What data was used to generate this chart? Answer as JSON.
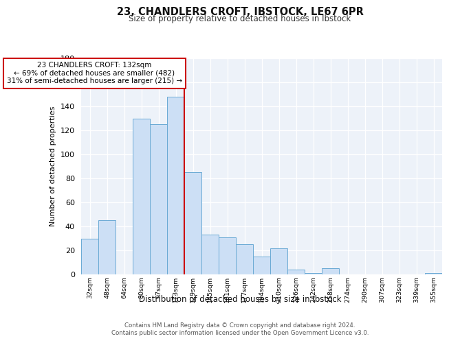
{
  "title": "23, CHANDLERS CROFT, IBSTOCK, LE67 6PR",
  "subtitle": "Size of property relative to detached houses in Ibstock",
  "xlabel": "Distribution of detached houses by size in Ibstock",
  "ylabel": "Number of detached properties",
  "bin_labels": [
    "32sqm",
    "48sqm",
    "64sqm",
    "80sqm",
    "97sqm",
    "113sqm",
    "129sqm",
    "145sqm",
    "161sqm",
    "177sqm",
    "194sqm",
    "210sqm",
    "226sqm",
    "242sqm",
    "258sqm",
    "274sqm",
    "290sqm",
    "307sqm",
    "323sqm",
    "339sqm",
    "355sqm"
  ],
  "bar_values": [
    30,
    45,
    0,
    130,
    125,
    148,
    85,
    33,
    31,
    25,
    15,
    22,
    4,
    1,
    5,
    0,
    0,
    0,
    0,
    0,
    1
  ],
  "bar_color": "#ccdff5",
  "bar_edge_color": "#6aaad4",
  "property_line_color": "#cc0000",
  "property_line_index": 5.5,
  "annotation_text": "23 CHANDLERS CROFT: 132sqm\n← 69% of detached houses are smaller (482)\n31% of semi-detached houses are larger (215) →",
  "annotation_box_facecolor": "#ffffff",
  "annotation_box_edgecolor": "#cc0000",
  "ylim": [
    0,
    180
  ],
  "yticks": [
    0,
    20,
    40,
    60,
    80,
    100,
    120,
    140,
    160,
    180
  ],
  "grid_color": "#d0daea",
  "bg_color": "#edf2f9",
  "footer_line1": "Contains HM Land Registry data © Crown copyright and database right 2024.",
  "footer_line2": "Contains public sector information licensed under the Open Government Licence v3.0."
}
